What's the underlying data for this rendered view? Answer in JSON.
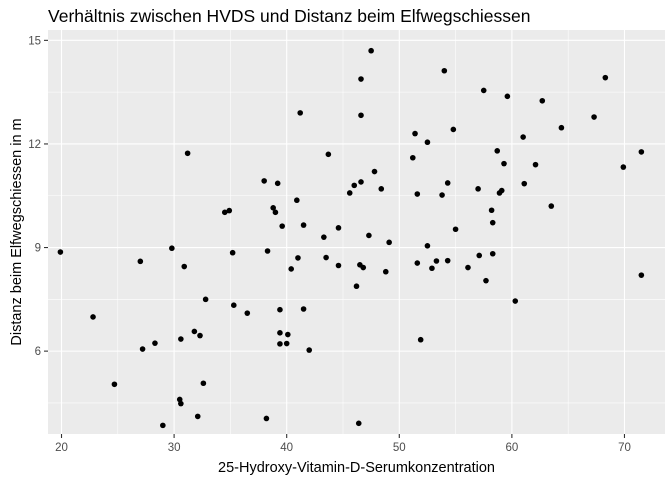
{
  "chart_data": {
    "type": "scatter",
    "title": "Verhältnis zwischen HVDS und Distanz beim Elfwegschiessen",
    "xlabel": "25-Hydroxy-Vitamin-D-Serumkonzentration",
    "ylabel": "Distanz beim Elfwegschiessen in m",
    "xlim": [
      18.8,
      73.6
    ],
    "ylim": [
      3.6,
      15.3
    ],
    "x_ticks": [
      20,
      30,
      40,
      50,
      60,
      70
    ],
    "y_ticks": [
      6,
      9,
      12,
      15
    ],
    "grid": true,
    "colors": {
      "panel": "#ebebeb",
      "grid": "#ffffff",
      "point": "#000000"
    },
    "points": [
      {
        "x": 19.9,
        "y": 8.87
      },
      {
        "x": 22.8,
        "y": 6.99
      },
      {
        "x": 24.7,
        "y": 5.04
      },
      {
        "x": 27.0,
        "y": 8.6
      },
      {
        "x": 27.2,
        "y": 6.06
      },
      {
        "x": 28.3,
        "y": 6.23
      },
      {
        "x": 29.0,
        "y": 3.85
      },
      {
        "x": 29.8,
        "y": 8.98
      },
      {
        "x": 30.5,
        "y": 4.6
      },
      {
        "x": 30.6,
        "y": 4.48
      },
      {
        "x": 30.6,
        "y": 6.35
      },
      {
        "x": 30.9,
        "y": 8.45
      },
      {
        "x": 31.2,
        "y": 11.73
      },
      {
        "x": 31.8,
        "y": 6.57
      },
      {
        "x": 32.1,
        "y": 4.11
      },
      {
        "x": 32.3,
        "y": 6.45
      },
      {
        "x": 32.6,
        "y": 5.07
      },
      {
        "x": 32.8,
        "y": 7.5
      },
      {
        "x": 34.5,
        "y": 10.02
      },
      {
        "x": 34.9,
        "y": 10.07
      },
      {
        "x": 35.2,
        "y": 8.85
      },
      {
        "x": 35.3,
        "y": 7.33
      },
      {
        "x": 36.5,
        "y": 7.1
      },
      {
        "x": 38.0,
        "y": 10.93
      },
      {
        "x": 38.2,
        "y": 4.05
      },
      {
        "x": 38.3,
        "y": 8.9
      },
      {
        "x": 38.8,
        "y": 10.15
      },
      {
        "x": 39.0,
        "y": 10.02
      },
      {
        "x": 39.2,
        "y": 10.86
      },
      {
        "x": 39.4,
        "y": 7.2
      },
      {
        "x": 39.4,
        "y": 6.53
      },
      {
        "x": 39.4,
        "y": 6.21
      },
      {
        "x": 39.6,
        "y": 9.62
      },
      {
        "x": 40.0,
        "y": 6.22
      },
      {
        "x": 40.1,
        "y": 6.48
      },
      {
        "x": 40.4,
        "y": 8.38
      },
      {
        "x": 40.9,
        "y": 10.37
      },
      {
        "x": 41.0,
        "y": 8.7
      },
      {
        "x": 41.2,
        "y": 12.9
      },
      {
        "x": 41.5,
        "y": 9.65
      },
      {
        "x": 41.5,
        "y": 7.22
      },
      {
        "x": 42.0,
        "y": 6.03
      },
      {
        "x": 43.3,
        "y": 9.3
      },
      {
        "x": 43.5,
        "y": 8.71
      },
      {
        "x": 43.7,
        "y": 11.7
      },
      {
        "x": 44.6,
        "y": 9.57
      },
      {
        "x": 44.6,
        "y": 8.48
      },
      {
        "x": 45.6,
        "y": 10.58
      },
      {
        "x": 46.0,
        "y": 10.8
      },
      {
        "x": 46.2,
        "y": 7.88
      },
      {
        "x": 46.4,
        "y": 3.91
      },
      {
        "x": 46.5,
        "y": 8.5
      },
      {
        "x": 46.6,
        "y": 12.83
      },
      {
        "x": 46.6,
        "y": 10.9
      },
      {
        "x": 46.6,
        "y": 13.88
      },
      {
        "x": 46.8,
        "y": 8.42
      },
      {
        "x": 47.3,
        "y": 9.35
      },
      {
        "x": 47.5,
        "y": 14.7
      },
      {
        "x": 47.8,
        "y": 11.2
      },
      {
        "x": 48.4,
        "y": 10.7
      },
      {
        "x": 48.8,
        "y": 8.3
      },
      {
        "x": 49.1,
        "y": 9.15
      },
      {
        "x": 51.2,
        "y": 11.6
      },
      {
        "x": 51.4,
        "y": 12.3
      },
      {
        "x": 51.6,
        "y": 10.55
      },
      {
        "x": 51.6,
        "y": 8.55
      },
      {
        "x": 51.9,
        "y": 6.33
      },
      {
        "x": 52.5,
        "y": 12.05
      },
      {
        "x": 52.5,
        "y": 9.05
      },
      {
        "x": 52.9,
        "y": 8.4
      },
      {
        "x": 53.3,
        "y": 8.61
      },
      {
        "x": 53.8,
        "y": 10.52
      },
      {
        "x": 54.0,
        "y": 14.12
      },
      {
        "x": 54.3,
        "y": 10.87
      },
      {
        "x": 54.3,
        "y": 8.62
      },
      {
        "x": 54.8,
        "y": 12.42
      },
      {
        "x": 55.0,
        "y": 9.53
      },
      {
        "x": 56.1,
        "y": 8.42
      },
      {
        "x": 57.0,
        "y": 10.7
      },
      {
        "x": 57.1,
        "y": 8.77
      },
      {
        "x": 57.5,
        "y": 13.55
      },
      {
        "x": 57.7,
        "y": 8.04
      },
      {
        "x": 58.2,
        "y": 10.08
      },
      {
        "x": 58.3,
        "y": 9.72
      },
      {
        "x": 58.3,
        "y": 8.82
      },
      {
        "x": 58.7,
        "y": 11.8
      },
      {
        "x": 58.9,
        "y": 10.58
      },
      {
        "x": 59.1,
        "y": 10.65
      },
      {
        "x": 59.3,
        "y": 11.43
      },
      {
        "x": 59.6,
        "y": 13.38
      },
      {
        "x": 60.3,
        "y": 7.45
      },
      {
        "x": 61.0,
        "y": 12.2
      },
      {
        "x": 61.1,
        "y": 10.85
      },
      {
        "x": 62.1,
        "y": 11.4
      },
      {
        "x": 62.7,
        "y": 13.25
      },
      {
        "x": 63.5,
        "y": 10.2
      },
      {
        "x": 64.4,
        "y": 12.47
      },
      {
        "x": 67.3,
        "y": 12.78
      },
      {
        "x": 68.3,
        "y": 13.92
      },
      {
        "x": 69.9,
        "y": 11.33
      },
      {
        "x": 71.5,
        "y": 11.77
      },
      {
        "x": 71.5,
        "y": 8.2
      }
    ]
  }
}
